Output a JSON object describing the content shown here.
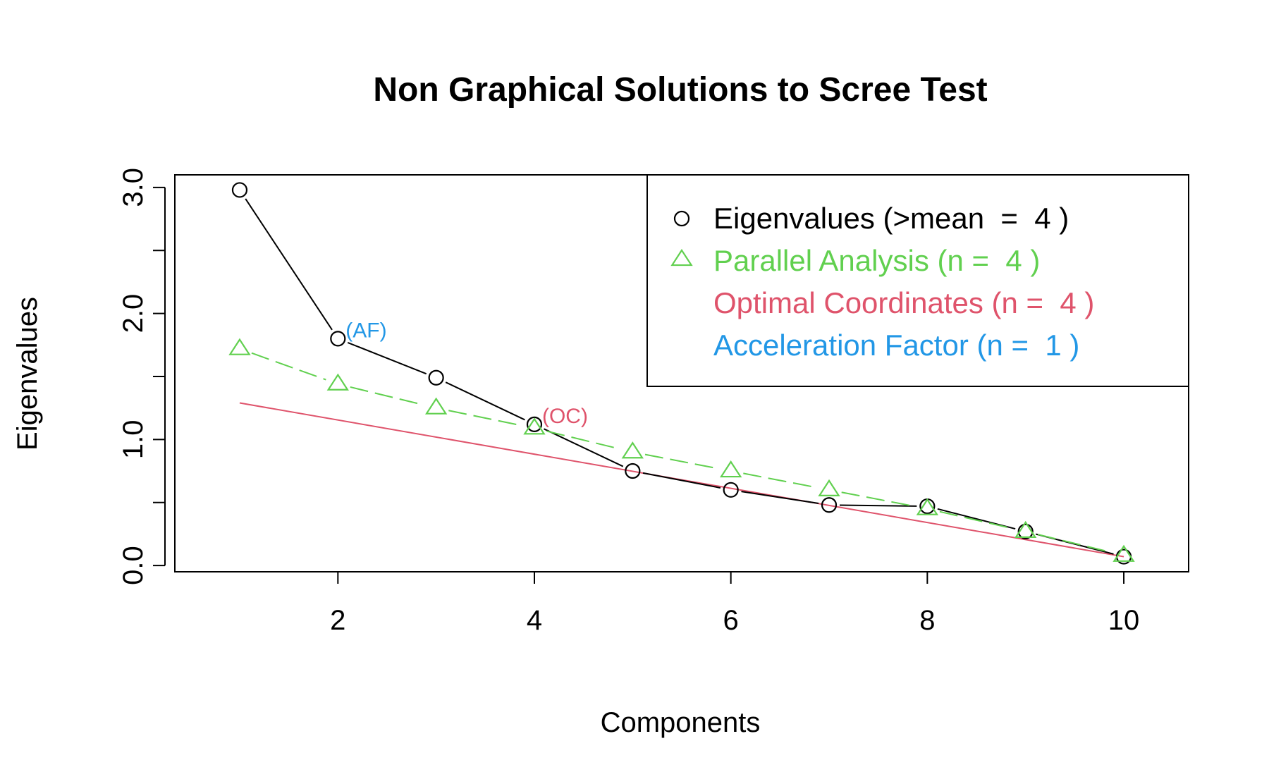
{
  "chart_data": {
    "type": "line",
    "title": "Non Graphical Solutions to Scree Test",
    "xlabel": "Components",
    "ylabel": "Eigenvalues",
    "xlim": [
      0.34,
      10.66
    ],
    "ylim": [
      -0.05,
      3.1
    ],
    "x_ticks": [
      2,
      4,
      6,
      8,
      10
    ],
    "y_ticks": [
      0,
      0.5,
      1,
      1.5,
      2,
      2.5,
      3
    ],
    "y_tick_labels": [
      "0.0",
      "",
      "1.0",
      "",
      "2.0",
      "",
      "3.0"
    ],
    "x": [
      1,
      2,
      3,
      4,
      5,
      6,
      7,
      8,
      9,
      10
    ],
    "series": [
      {
        "name": "Eigenvalues (>mean  =  4 )",
        "color": "#000000",
        "marker": "circle",
        "line": "solid",
        "values": [
          2.98,
          1.8,
          1.49,
          1.12,
          0.75,
          0.6,
          0.48,
          0.47,
          0.27,
          0.07
        ]
      },
      {
        "name": "Parallel Analysis (n =  4 )",
        "color": "#61D04F",
        "marker": "triangle",
        "line": "dashed",
        "values": [
          1.72,
          1.44,
          1.25,
          1.09,
          0.9,
          0.75,
          0.6,
          0.45,
          0.27,
          0.08
        ]
      },
      {
        "name": "Optimal Coordinates (n =  4 )",
        "color": "#DF536B",
        "marker": "none",
        "line": "solid",
        "segment": {
          "x": [
            1,
            10
          ],
          "y": [
            1.29,
            0.07
          ]
        }
      },
      {
        "name": "Acceleration Factor (n =  1 )",
        "color": "#2297E6",
        "marker": "none",
        "line": "none"
      }
    ],
    "annotations": [
      {
        "text": "(AF)",
        "x": 2,
        "y": 1.8,
        "color": "#2297E6"
      },
      {
        "text": "(OC)",
        "x": 4,
        "y": 1.12,
        "color": "#DF536B"
      }
    ],
    "legend_position": "top-right",
    "grid": false
  }
}
